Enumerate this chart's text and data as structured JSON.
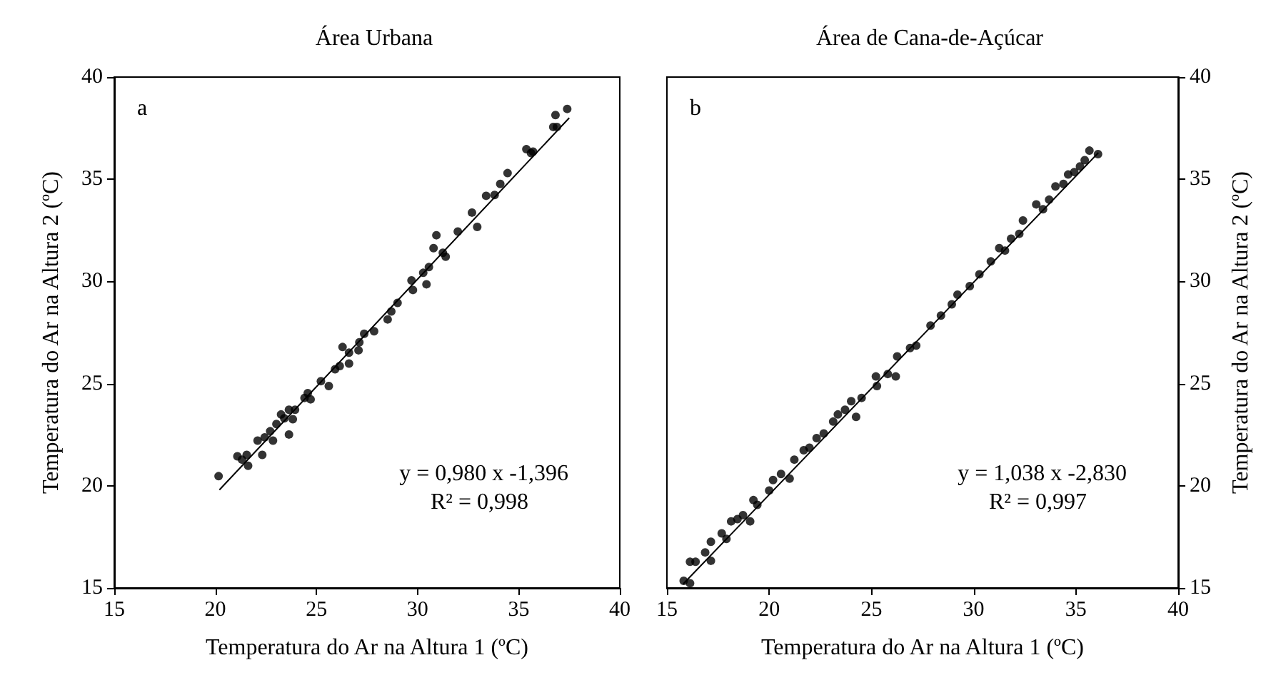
{
  "chart_data": [
    {
      "type": "scatter",
      "title": "Área Urbana",
      "xlabel": "Temperatura do Ar na Altura 1 (ºC)",
      "ylabel": "Temperatura do Ar na Altura 2 (ºC)",
      "annotations": [
        "a",
        "y = 0,980 x -1,396",
        "R² = 0,998"
      ],
      "xlim": [
        15,
        40
      ],
      "ylim": [
        15,
        40
      ],
      "xticks": [
        15,
        20,
        25,
        30,
        35,
        40
      ],
      "yticks": [
        15,
        20,
        25,
        30,
        35,
        40
      ],
      "grid": false,
      "series": [
        {
          "marker": "circle",
          "color": "#000000",
          "x": [
            20.16,
            21.09,
            21.32,
            21.55,
            21.62,
            22.09,
            22.32,
            22.44,
            22.71,
            22.85,
            23.02,
            23.25,
            23.41,
            23.64,
            23.64,
            23.83,
            23.94,
            24.41,
            24.57,
            24.71,
            25.22,
            25.61,
            25.92,
            26.15,
            26.29,
            26.61,
            26.61,
            27.08,
            27.12,
            27.36,
            27.85,
            28.52,
            28.7,
            29.01,
            29.7,
            29.77,
            30.28,
            30.44,
            30.56,
            30.79,
            30.93,
            31.25,
            31.39,
            31.99,
            32.69,
            32.95,
            33.39,
            33.81,
            34.09,
            34.45,
            35.38,
            35.61,
            35.71,
            36.71,
            36.89,
            36.82,
            37.4
          ],
          "values": [
            20.47,
            21.44,
            21.28,
            21.51,
            20.98,
            22.21,
            21.51,
            22.37,
            22.67,
            22.21,
            23.02,
            23.49,
            23.3,
            23.72,
            22.51,
            23.26,
            23.72,
            24.3,
            24.53,
            24.23,
            25.12,
            24.88,
            25.7,
            25.86,
            26.79,
            26.51,
            25.98,
            26.63,
            27.02,
            27.44,
            27.56,
            28.14,
            28.53,
            28.95,
            30.05,
            29.58,
            30.42,
            29.86,
            30.7,
            31.63,
            32.26,
            31.4,
            31.21,
            32.44,
            33.37,
            32.67,
            34.19,
            34.23,
            34.77,
            35.3,
            36.47,
            36.28,
            36.35,
            37.56,
            37.56,
            38.14,
            38.44
          ]
        },
        {
          "type": "line",
          "marker": "none",
          "color": "#000000",
          "line_style": "solid",
          "x": [
            20.2,
            37.5
          ],
          "values": [
            19.8,
            38.0
          ]
        }
      ]
    },
    {
      "type": "scatter",
      "title": "Área de Cana-de-Açúcar",
      "xlabel": "Temperatura do Ar na Altura 1 (ºC)",
      "ylabel": "Temperatura do Ar na Altura 2 (ºC)",
      "annotations": [
        "b",
        "y = 1,038 x -2,830",
        "R² = 0,997"
      ],
      "xlim": [
        15,
        40
      ],
      "ylim": [
        15,
        40
      ],
      "xticks": [
        15,
        20,
        25,
        30,
        35,
        40
      ],
      "yticks": [
        15,
        20,
        25,
        30,
        35,
        40
      ],
      "grid": false,
      "series": [
        {
          "marker": "circle",
          "color": "#000000",
          "x": [
            15.82,
            16.13,
            16.13,
            16.4,
            16.87,
            17.15,
            17.15,
            17.68,
            17.91,
            18.14,
            18.45,
            18.72,
            19.07,
            19.23,
            19.42,
            20.0,
            20.19,
            20.58,
            21.0,
            21.23,
            21.69,
            21.97,
            22.32,
            22.67,
            23.13,
            23.36,
            23.71,
            24.01,
            24.25,
            24.52,
            25.22,
            25.27,
            25.8,
            26.19,
            26.26,
            26.89,
            27.19,
            27.89,
            28.4,
            28.93,
            29.21,
            29.81,
            30.28,
            30.84,
            31.25,
            31.53,
            31.83,
            32.23,
            32.41,
            33.06,
            33.39,
            33.69,
            34.0,
            34.39,
            34.62,
            34.92,
            35.2,
            35.43,
            35.66,
            36.08
          ],
          "values": [
            15.35,
            15.23,
            16.28,
            16.28,
            16.74,
            16.33,
            17.26,
            17.67,
            17.4,
            18.26,
            18.37,
            18.56,
            18.26,
            19.3,
            19.07,
            19.77,
            20.28,
            20.58,
            20.35,
            21.28,
            21.74,
            21.86,
            22.33,
            22.56,
            23.14,
            23.49,
            23.72,
            24.14,
            23.37,
            24.3,
            25.35,
            24.88,
            25.47,
            25.35,
            26.33,
            26.74,
            26.86,
            27.84,
            28.33,
            28.88,
            29.35,
            29.77,
            30.35,
            30.98,
            31.63,
            31.51,
            32.09,
            32.33,
            32.98,
            33.77,
            33.53,
            34.0,
            34.65,
            34.77,
            35.23,
            35.35,
            35.63,
            35.93,
            36.4,
            36.23
          ]
        },
        {
          "type": "line",
          "marker": "none",
          "color": "#000000",
          "line_style": "solid",
          "x": [
            15.8,
            36.1
          ],
          "values": [
            15.2,
            36.3
          ]
        }
      ]
    }
  ]
}
